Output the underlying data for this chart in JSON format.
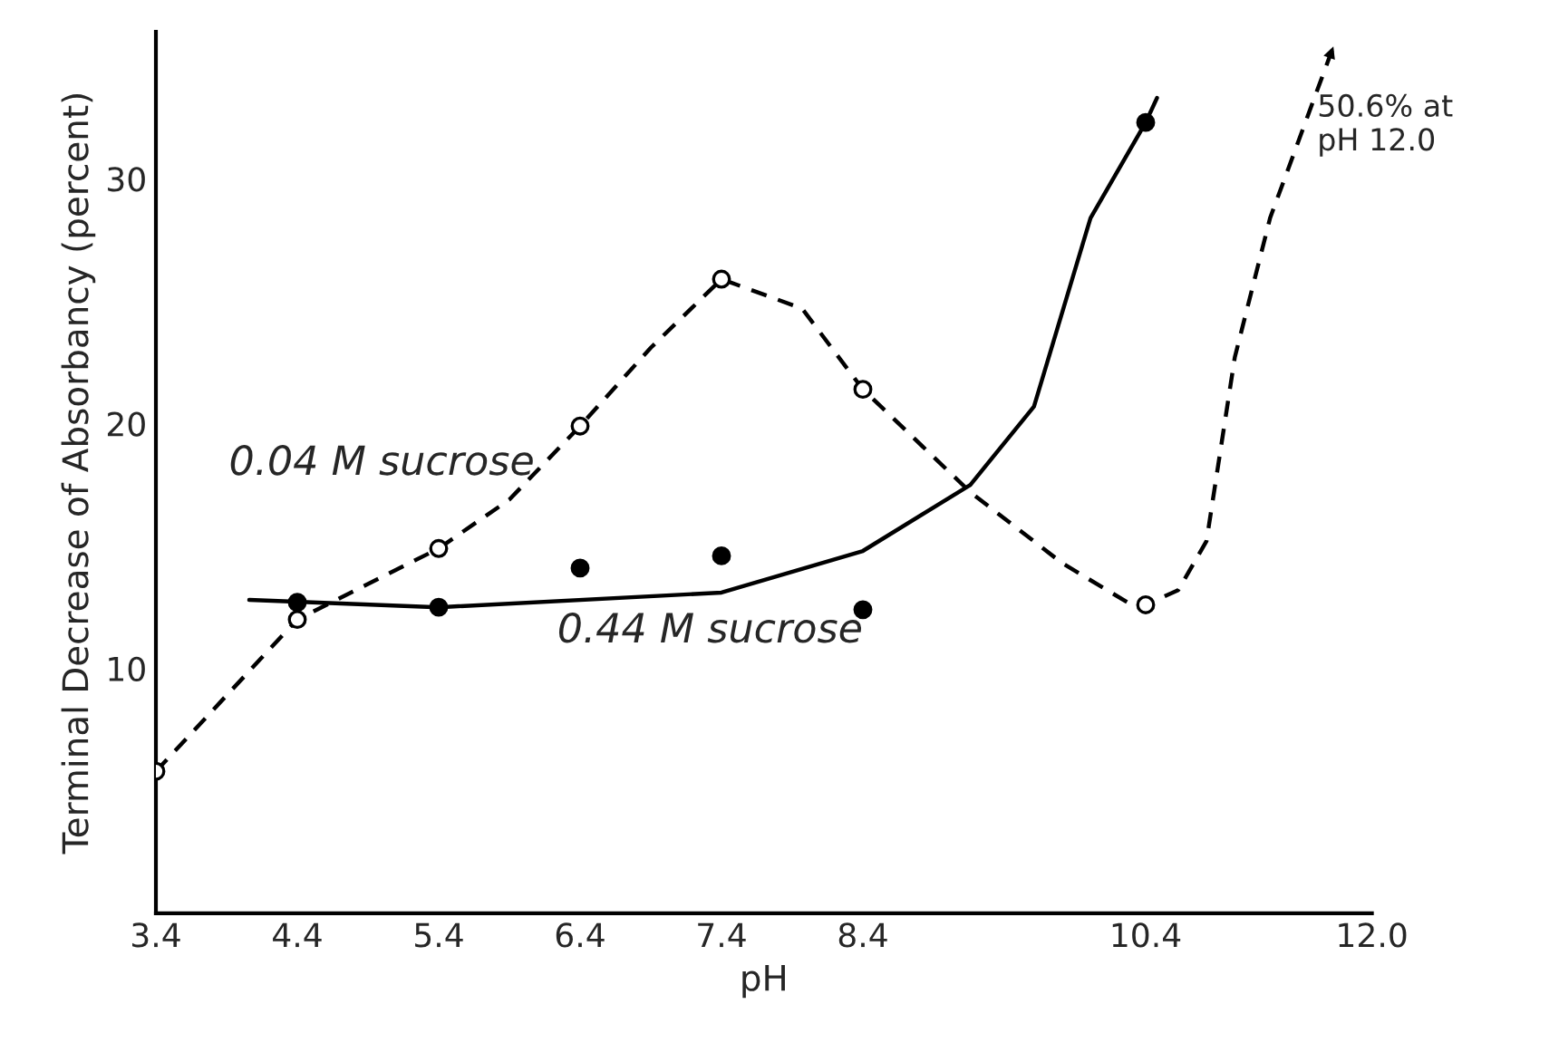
{
  "chart_data": {
    "type": "scatter",
    "xlabel": "pH",
    "ylabel": "Terminal Decrease of Absorbancy (percent)",
    "xlim": [
      3.4,
      12.0
    ],
    "xticks": [
      3.4,
      4.4,
      5.4,
      6.4,
      7.4,
      8.4,
      10.4,
      {
        "value": 12.0,
        "label": "12.0"
      }
    ],
    "ylim": [
      0,
      36
    ],
    "yticks": [
      10,
      20,
      30
    ],
    "grid": false,
    "series": [
      {
        "type": "line",
        "name": "0.04 M sucrose",
        "line_style": "dashed",
        "marker": "none",
        "color": "#000000",
        "x": [
          3.4,
          4.4,
          5.4,
          5.9,
          6.4,
          6.9,
          7.4,
          7.97,
          8.4,
          9.16,
          9.81,
          10.3,
          10.4,
          10.63,
          10.83,
          11.03,
          11.28,
          11.74
        ],
        "values": [
          5.8,
          12.0,
          14.9,
          16.9,
          19.9,
          23.1,
          25.9,
          24.7,
          21.4,
          17.2,
          14.3,
          12.6,
          12.6,
          13.2,
          15.2,
          22.7,
          28.4,
          35.6
        ]
      },
      {
        "type": "line",
        "name": "0.44 M sucrose",
        "line_style": "solid",
        "marker": "none",
        "color": "#000000",
        "x": [
          4.06,
          5.4,
          7.4,
          8.4,
          9.16,
          9.61,
          10.01,
          10.4,
          10.48
        ],
        "values": [
          12.8,
          12.5,
          13.1,
          14.8,
          17.5,
          20.7,
          28.4,
          32.3,
          33.3
        ]
      },
      {
        "marker": "circle",
        "color": "#ffffff",
        "x": [
          3.4,
          4.4,
          5.4,
          6.4,
          7.4,
          8.4,
          10.4
        ],
        "values": [
          5.8,
          12.0,
          14.9,
          19.9,
          25.9,
          21.4,
          12.6
        ]
      },
      {
        "marker": "circle",
        "color": "#000000",
        "x": [
          4.4,
          5.4,
          6.4,
          7.4,
          8.4,
          10.4
        ],
        "values": [
          12.7,
          12.5,
          14.1,
          14.6,
          12.4,
          32.3
        ]
      }
    ],
    "annotations": [
      "50.6% at\npH 12.0"
    ]
  }
}
